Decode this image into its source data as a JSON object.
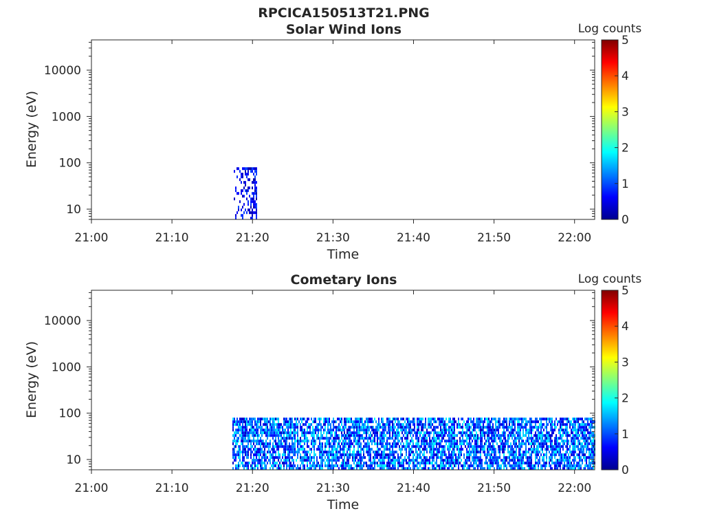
{
  "figure_title": "RPCICA150513T21.PNG",
  "colorbar": {
    "label": "Log counts",
    "ticks": [
      "0",
      "1",
      "2",
      "3",
      "4",
      "5"
    ],
    "range": [
      0,
      5
    ]
  },
  "chart_data": [
    {
      "type": "heatmap",
      "title": "Solar Wind Ions",
      "xlabel": "Time",
      "ylabel": "Energy (eV)",
      "x_ticks": [
        "21:00",
        "21:10",
        "21:20",
        "21:30",
        "21:40",
        "21:50",
        "22:00"
      ],
      "x_range_minutes": [
        0,
        62.5
      ],
      "y_scale": "log",
      "y_ticks": [
        "10",
        "100",
        "1000",
        "10000"
      ],
      "y_range": [
        6,
        45000
      ],
      "data_region": {
        "t_start_min": 17.5,
        "t_end_min": 20.5,
        "e_min": 6,
        "e_max": 80,
        "typical_log_counts": [
          0.2,
          1.0
        ],
        "coverage": "sparse"
      }
    },
    {
      "type": "heatmap",
      "title": "Cometary Ions",
      "xlabel": "Time",
      "ylabel": "Energy (eV)",
      "x_ticks": [
        "21:00",
        "21:10",
        "21:20",
        "21:30",
        "21:40",
        "21:50",
        "22:00"
      ],
      "x_range_minutes": [
        0,
        62.5
      ],
      "y_scale": "log",
      "y_ticks": [
        "10",
        "100",
        "1000",
        "10000"
      ],
      "y_range": [
        6,
        45000
      ],
      "data_region": {
        "t_start_min": 17.5,
        "t_end_min": 62.5,
        "e_min": 6,
        "e_max": 80,
        "typical_log_counts": [
          0.3,
          1.9
        ],
        "coverage": "dense"
      }
    }
  ]
}
